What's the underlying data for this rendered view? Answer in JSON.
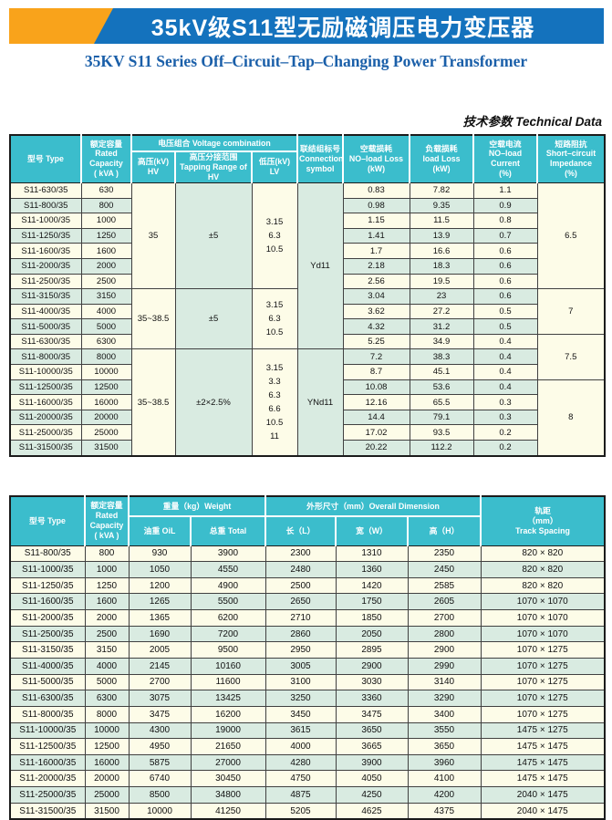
{
  "banner": {
    "title": "35kV级S11型无励磁调压电力变压器",
    "subtitle": "35KV S11 Series Off–Circuit–Tap–Changing Power Transformer",
    "blue": "#1472bd",
    "orange": "#f9a31b"
  },
  "section": {
    "label": "技术参数 Technical Data"
  },
  "colors": {
    "header_bg": "#3bbdcc",
    "row_cream": "#fdfce8",
    "row_green": "#d9ebe1",
    "border": "#404040"
  },
  "table1": {
    "headers": {
      "type": "型号 Type",
      "capacity": "额定容量\nRated Capacity\n( kVA )",
      "voltage_combination": "电压组合 Voltage combination",
      "hv": "高压(kV)\nHV",
      "tapping": "高压分接范围\nTapping Range of HV",
      "lv": "低压(kV)\nLV",
      "connection": "联结组标号\nConnection\nsymbol",
      "noload_loss": "空载损耗\nNO–load Loss\n(kW)",
      "load_loss": "负载损耗\nload Loss\n(kW)",
      "noload_current": "空载电流\nNO–load\nCurrent\n(%)",
      "impedance": "短路阻抗\nShort–circuit\nImpedance\n(%)"
    },
    "rows": [
      [
        "S11-630/35",
        "630",
        {
          "v": "35",
          "rs": 7,
          "bg": "cream",
          "n": "hv-cell"
        },
        {
          "v": "±5",
          "rs": 7,
          "bg": "green",
          "n": "tapping-cell"
        },
        {
          "v": "3.15\n6.3\n10.5",
          "rs": 7,
          "bg": "cream",
          "cls": "lv",
          "n": "lv-cell"
        },
        {
          "v": "Yd11",
          "rs": 11,
          "bg": "green",
          "n": "connection-cell"
        },
        "0.83",
        "7.82",
        "1.1",
        {
          "v": "6.5",
          "rs": 7,
          "bg": "cream",
          "n": "impedance-cell"
        }
      ],
      [
        "S11-800/35",
        "800",
        "0.98",
        "9.35",
        "0.9"
      ],
      [
        "S11-1000/35",
        "1000",
        "1.15",
        "11.5",
        "0.8"
      ],
      [
        "S11-1250/35",
        "1250",
        "1.41",
        "13.9",
        "0.7"
      ],
      [
        "S11-1600/35",
        "1600",
        "1.7",
        "16.6",
        "0.6"
      ],
      [
        "S11-2000/35",
        "2000",
        "2.18",
        "18.3",
        "0.6"
      ],
      [
        "S11-2500/35",
        "2500",
        "2.56",
        "19.5",
        "0.6"
      ],
      [
        "S11-3150/35",
        "3150",
        {
          "v": "35~38.5",
          "rs": 4,
          "bg": "cream",
          "n": "hv-cell"
        },
        {
          "v": "±5",
          "rs": 4,
          "bg": "green",
          "n": "tapping-cell"
        },
        {
          "v": "3.15\n6.3\n10.5",
          "rs": 4,
          "bg": "cream",
          "cls": "lv",
          "n": "lv-cell"
        },
        "3.04",
        "23",
        "0.6",
        {
          "v": "7",
          "rs": 3,
          "bg": "cream",
          "n": "impedance-cell"
        }
      ],
      [
        "S11-4000/35",
        "4000",
        "3.62",
        "27.2",
        "0.5"
      ],
      [
        "S11-5000/35",
        "5000",
        "4.32",
        "31.2",
        "0.5"
      ],
      [
        "S11-6300/35",
        "6300",
        "5.25",
        "34.9",
        "0.4",
        {
          "v": "7.5",
          "rs": 3,
          "bg": "cream",
          "n": "impedance-cell"
        }
      ],
      [
        "S11-8000/35",
        "8000",
        {
          "v": "35~38.5",
          "rs": 7,
          "bg": "cream",
          "n": "hv-cell"
        },
        {
          "v": "±2×2.5%",
          "rs": 7,
          "bg": "green",
          "n": "tapping-cell"
        },
        {
          "v": "3.15\n3.3\n6.3\n6.6\n10.5\n11",
          "rs": 7,
          "bg": "cream",
          "cls": "lv",
          "n": "lv-cell"
        },
        {
          "v": "YNd11",
          "rs": 7,
          "bg": "green",
          "n": "connection-cell"
        },
        "7.2",
        "38.3",
        "0.4"
      ],
      [
        "S11-10000/35",
        "10000",
        "8.7",
        "45.1",
        "0.4"
      ],
      [
        "S11-12500/35",
        "12500",
        "10.08",
        "53.6",
        "0.4",
        {
          "v": "8",
          "rs": 5,
          "bg": "cream",
          "n": "impedance-cell"
        }
      ],
      [
        "S11-16000/35",
        "16000",
        "12.16",
        "65.5",
        "0.3"
      ],
      [
        "S11-20000/35",
        "20000",
        "14.4",
        "79.1",
        "0.3"
      ],
      [
        "S11-25000/35",
        "25000",
        "17.02",
        "93.5",
        "0.2"
      ],
      [
        "S11-31500/35",
        "31500",
        "20.22",
        "112.2",
        "0.2"
      ]
    ]
  },
  "table2": {
    "headers": {
      "type": "型号 Type",
      "capacity": "额定容量\nRated Capacity\n( kVA )",
      "weight": "重量（kg）Weight",
      "oil": "油重 OiL",
      "total": "总重 Total",
      "dimension": "外形尺寸（mm）Overall Dimension",
      "length": "长（L）",
      "width": "宽（W）",
      "height": "高（H）",
      "track": "轨距\n（mm）\nTrack Spacing"
    },
    "rows": [
      [
        "S11-800/35",
        "800",
        "930",
        "3900",
        "2300",
        "1310",
        "2350",
        "820 × 820"
      ],
      [
        "S11-1000/35",
        "1000",
        "1050",
        "4550",
        "2480",
        "1360",
        "2450",
        "820 × 820"
      ],
      [
        "S11-1250/35",
        "1250",
        "1200",
        "4900",
        "2500",
        "1420",
        "2585",
        "820 × 820"
      ],
      [
        "S11-1600/35",
        "1600",
        "1265",
        "5500",
        "2650",
        "1750",
        "2605",
        "1070 × 1070"
      ],
      [
        "S11-2000/35",
        "2000",
        "1365",
        "6200",
        "2710",
        "1850",
        "2700",
        "1070 × 1070"
      ],
      [
        "S11-2500/35",
        "2500",
        "1690",
        "7200",
        "2860",
        "2050",
        "2800",
        "1070 × 1070"
      ],
      [
        "S11-3150/35",
        "3150",
        "2005",
        "9500",
        "2950",
        "2895",
        "2900",
        "1070 × 1275"
      ],
      [
        "S11-4000/35",
        "4000",
        "2145",
        "10160",
        "3005",
        "2900",
        "2990",
        "1070 × 1275"
      ],
      [
        "S11-5000/35",
        "5000",
        "2700",
        "11600",
        "3100",
        "3030",
        "3140",
        "1070 × 1275"
      ],
      [
        "S11-6300/35",
        "6300",
        "3075",
        "13425",
        "3250",
        "3360",
        "3290",
        "1070 × 1275"
      ],
      [
        "S11-8000/35",
        "8000",
        "3475",
        "16200",
        "3450",
        "3475",
        "3400",
        "1070 × 1275"
      ],
      [
        "S11-10000/35",
        "10000",
        "4300",
        "19000",
        "3615",
        "3650",
        "3550",
        "1475 × 1275"
      ],
      [
        "S11-12500/35",
        "12500",
        "4950",
        "21650",
        "4000",
        "3665",
        "3650",
        "1475 × 1475"
      ],
      [
        "S11-16000/35",
        "16000",
        "5875",
        "27000",
        "4280",
        "3900",
        "3960",
        "1475 × 1475"
      ],
      [
        "S11-20000/35",
        "20000",
        "6740",
        "30450",
        "4750",
        "4050",
        "4100",
        "1475 × 1475"
      ],
      [
        "S11-25000/35",
        "25000",
        "8500",
        "34800",
        "4875",
        "4250",
        "4200",
        "2040 × 1475"
      ],
      [
        "S11-31500/35",
        "31500",
        "10000",
        "41250",
        "5205",
        "4625",
        "4375",
        "2040 × 1475"
      ]
    ]
  }
}
